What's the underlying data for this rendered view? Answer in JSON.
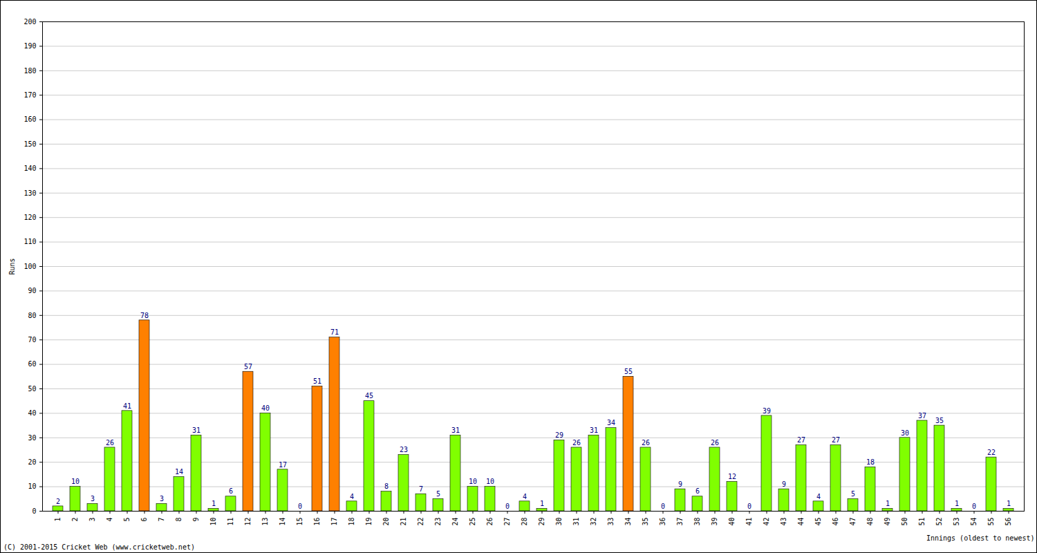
{
  "chart_data": {
    "type": "bar",
    "categories": [
      "1",
      "2",
      "3",
      "4",
      "5",
      "6",
      "7",
      "8",
      "9",
      "10",
      "11",
      "12",
      "13",
      "14",
      "15",
      "16",
      "17",
      "18",
      "19",
      "20",
      "21",
      "22",
      "23",
      "24",
      "25",
      "26",
      "27",
      "28",
      "29",
      "30",
      "31",
      "32",
      "33",
      "34",
      "35",
      "36",
      "37",
      "38",
      "39",
      "40",
      "41",
      "42",
      "43",
      "44",
      "45",
      "46",
      "47",
      "48",
      "49",
      "50",
      "51",
      "52",
      "53",
      "54",
      "55",
      "56"
    ],
    "values": [
      2,
      10,
      3,
      26,
      41,
      78,
      3,
      14,
      31,
      1,
      6,
      57,
      40,
      17,
      0,
      51,
      71,
      4,
      45,
      8,
      23,
      7,
      5,
      31,
      10,
      10,
      0,
      4,
      1,
      29,
      26,
      31,
      34,
      55,
      26,
      0,
      9,
      6,
      26,
      12,
      0,
      39,
      9,
      27,
      4,
      27,
      5,
      18,
      1,
      30,
      37,
      35,
      1,
      0,
      22,
      1
    ],
    "colors": [
      "#80ff00",
      "#80ff00",
      "#80ff00",
      "#80ff00",
      "#80ff00",
      "#ff8000",
      "#80ff00",
      "#80ff00",
      "#80ff00",
      "#80ff00",
      "#80ff00",
      "#ff8000",
      "#80ff00",
      "#80ff00",
      "#80ff00",
      "#ff8000",
      "#ff8000",
      "#80ff00",
      "#80ff00",
      "#80ff00",
      "#80ff00",
      "#80ff00",
      "#80ff00",
      "#80ff00",
      "#80ff00",
      "#80ff00",
      "#80ff00",
      "#80ff00",
      "#80ff00",
      "#80ff00",
      "#80ff00",
      "#80ff00",
      "#80ff00",
      "#ff8000",
      "#80ff00",
      "#80ff00",
      "#80ff00",
      "#80ff00",
      "#80ff00",
      "#80ff00",
      "#80ff00",
      "#80ff00",
      "#80ff00",
      "#80ff00",
      "#80ff00",
      "#80ff00",
      "#80ff00",
      "#80ff00",
      "#80ff00",
      "#80ff00",
      "#80ff00",
      "#80ff00",
      "#80ff00",
      "#80ff00",
      "#80ff00",
      "#80ff00"
    ],
    "x_label": "Innings (oldest to newest)",
    "y_label": "Runs",
    "caption": "(C) 2001-2015 Cricket Web (www.cricketweb.net)",
    "ylim": [
      0,
      200
    ],
    "yticks": [
      0,
      10,
      20,
      30,
      40,
      50,
      60,
      70,
      80,
      90,
      100,
      110,
      120,
      130,
      140,
      150,
      160,
      170,
      180,
      190,
      200
    ],
    "grid": true,
    "data_labels": true
  }
}
